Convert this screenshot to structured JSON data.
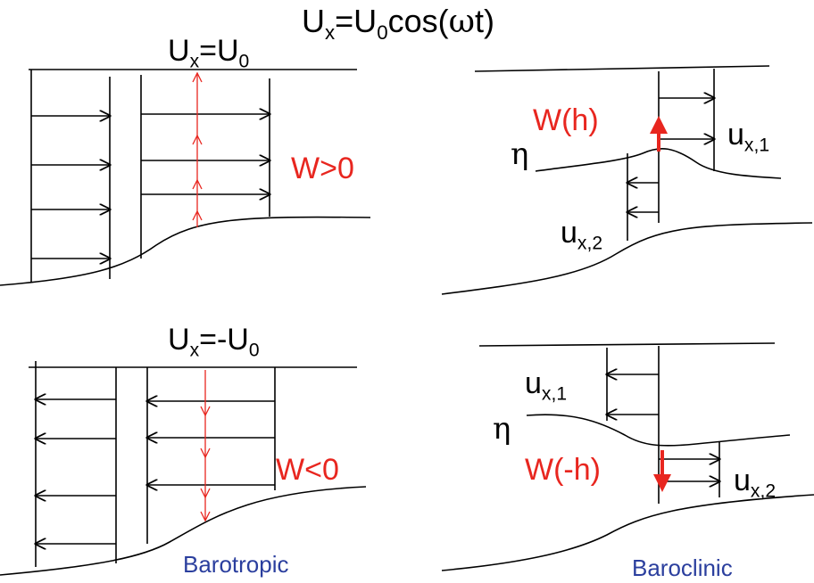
{
  "title": {
    "base": "U",
    "sub": "x",
    "rest_a": "=U",
    "sub0": "0",
    "rest_b": "cos(",
    "omega": "ω",
    "rest_c": "t)"
  },
  "panels": {
    "barotropic_top": {
      "label_base": "U",
      "label_sub": "x",
      "label_mid": "=U",
      "label_sub0": "0",
      "w_label": "W>0"
    },
    "barotropic_bottom": {
      "label_base": "U",
      "label_sub": "x",
      "label_mid": "=-U",
      "label_sub0": "0",
      "w_label": "W<0",
      "caption": "Barotropic"
    },
    "baroclinic_top": {
      "w_label": "W(h)",
      "eta": "η",
      "u1_base": "u",
      "u1_sub": "x,1",
      "u2_base": "u",
      "u2_sub": "x,2"
    },
    "baroclinic_bottom": {
      "w_label": "W(-h)",
      "eta": "η",
      "u1_base": "u",
      "u1_sub": "x,1",
      "u2_base": "u",
      "u2_sub": "x,2",
      "caption": "Baroclinic"
    }
  },
  "colors": {
    "ink": "#000000",
    "vertical_flow": "#e8261f",
    "caption": "#2b3f9e"
  }
}
